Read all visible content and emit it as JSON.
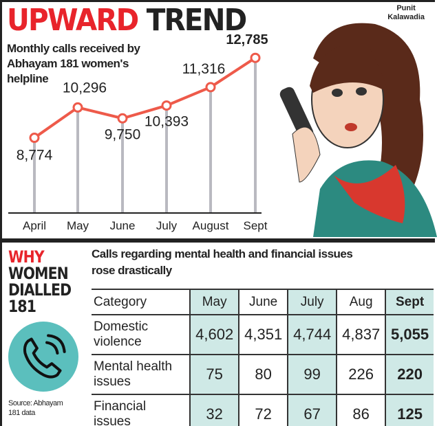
{
  "header": {
    "title_red": "UPWARD",
    "title_dark": "TREND",
    "credit": [
      "Punit",
      "Kalawadia"
    ]
  },
  "chart_data": {
    "type": "line",
    "title": "UPWARD TREND",
    "subtitle": "Monthly calls received by Abhayam 181 women's helpline",
    "categories": [
      "April",
      "May",
      "June",
      "July",
      "August",
      "Sept"
    ],
    "values": [
      8774,
      10296,
      9750,
      10393,
      11316,
      12785
    ],
    "labels": [
      "8,774",
      "10,296",
      "9,750",
      "10,393",
      "11,316",
      "12,785"
    ],
    "line_color": "#ee5a4a",
    "grid": false
  },
  "side": {
    "why": "WHY",
    "rest": [
      "WOMEN",
      "DIALLED",
      "181"
    ],
    "icon": "phone-icon",
    "circle_color": "#5bbfbd",
    "source": [
      "Source: Abhayam",
      "181 data"
    ]
  },
  "table": {
    "caption": "Calls regarding mental health and financial issues rose drastically",
    "headers": [
      "Category",
      "May",
      "June",
      "July",
      "Aug",
      "Sept"
    ],
    "rows": [
      {
        "category": [
          "Domestic",
          "violence"
        ],
        "values": [
          "4,602",
          "4,351",
          "4,744",
          "4,837",
          "5,055"
        ]
      },
      {
        "category": [
          "Mental health",
          "issues"
        ],
        "values": [
          "75",
          "80",
          "99",
          "226",
          "220"
        ]
      },
      {
        "category": [
          "Financial",
          "issues"
        ],
        "values": [
          "32",
          "72",
          "67",
          "86",
          "125"
        ]
      }
    ],
    "shade_color": "#cfe9e6"
  }
}
